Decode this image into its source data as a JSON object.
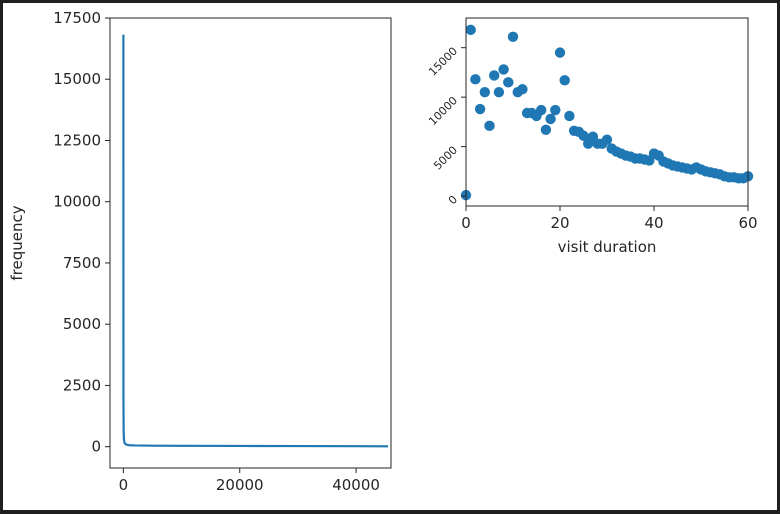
{
  "colors": {
    "series": "#1f77b4",
    "axis": "#262626",
    "background": "#ffffff",
    "border": "#1f1f1f"
  },
  "chart_data": [
    {
      "type": "line",
      "title": "",
      "xlabel": "",
      "ylabel": "frequency",
      "xlim": [
        -2300,
        46000
      ],
      "ylim": [
        -870,
        17500
      ],
      "xticks": [
        0,
        20000,
        40000
      ],
      "xtick_labels": [
        "0",
        "20000",
        "40000"
      ],
      "yticks": [
        0,
        2500,
        5000,
        7500,
        10000,
        12500,
        15000,
        17500
      ],
      "ytick_labels": [
        "0",
        "2500",
        "5000",
        "7500",
        "10000",
        "12500",
        "15000",
        "17500"
      ],
      "grid": false,
      "series": [
        {
          "x": [
            0,
            1,
            2,
            5,
            10,
            50,
            100,
            200,
            400,
            600,
            1000,
            2000,
            5000,
            10000,
            20000,
            30000,
            40000,
            45500
          ],
          "values": [
            16800,
            16800,
            12000,
            8000,
            2000,
            600,
            300,
            150,
            100,
            80,
            60,
            50,
            40,
            35,
            30,
            25,
            20,
            15
          ]
        }
      ]
    },
    {
      "type": "scatter",
      "title": "",
      "xlabel": "visit duration",
      "ylabel": "",
      "xlim": [
        0,
        60
      ],
      "ylim": [
        -1000,
        18000
      ],
      "xticks": [
        0,
        20,
        40,
        60
      ],
      "xtick_labels": [
        "0",
        "20",
        "40",
        "60"
      ],
      "yticks": [
        0,
        5000,
        10000,
        15000
      ],
      "ytick_labels": [
        "0",
        "5000",
        "10000",
        "15000"
      ],
      "ytick_rotation": 45,
      "grid": false,
      "series": [
        {
          "x": [
            0,
            1,
            2,
            3,
            4,
            5,
            6,
            7,
            8,
            9,
            10,
            11,
            12,
            13,
            14,
            15,
            16,
            17,
            18,
            19,
            20,
            21,
            22,
            23,
            24,
            25,
            26,
            27,
            28,
            29,
            30,
            31,
            32,
            33,
            34,
            35,
            36,
            37,
            38,
            39,
            40,
            41,
            42,
            43,
            44,
            45,
            46,
            47,
            48,
            49,
            50,
            51,
            52,
            53,
            54,
            55,
            56,
            57,
            58,
            59,
            60
          ],
          "values": [
            100,
            16800,
            11800,
            8800,
            10500,
            7100,
            12200,
            10500,
            12800,
            11500,
            16100,
            10500,
            10800,
            8400,
            8400,
            8100,
            8700,
            6700,
            7800,
            8700,
            14500,
            11700,
            8100,
            6600,
            6500,
            6100,
            5300,
            6000,
            5300,
            5300,
            5700,
            4800,
            4500,
            4300,
            4100,
            4000,
            3800,
            3800,
            3700,
            3600,
            4300,
            4100,
            3500,
            3300,
            3100,
            3000,
            2900,
            2800,
            2700,
            2900,
            2700,
            2500,
            2400,
            2300,
            2200,
            2000,
            1900,
            1900,
            1800,
            1800,
            2000
          ]
        }
      ]
    }
  ]
}
